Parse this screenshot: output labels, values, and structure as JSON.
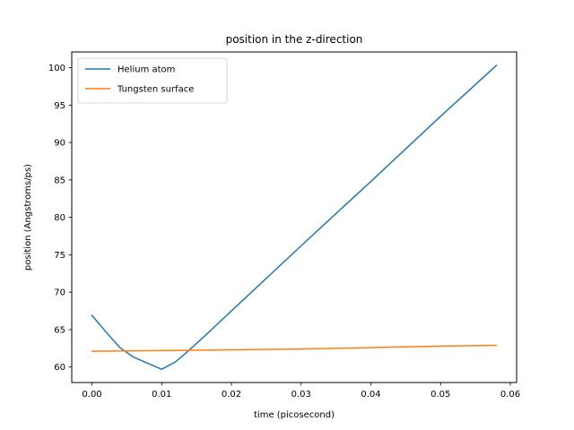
{
  "chart_data": {
    "type": "line",
    "title": "position in the z-direction",
    "xlabel": "time (picosecond)",
    "ylabel": "position (Angstroms/ps)",
    "xlim": [
      -0.0029,
      0.0609
    ],
    "ylim": [
      57.93,
      102.1
    ],
    "xticks": [
      0.0,
      0.01,
      0.02,
      0.03,
      0.04,
      0.05,
      0.06
    ],
    "xtick_labels": [
      "0.00",
      "0.01",
      "0.02",
      "0.03",
      "0.04",
      "0.05",
      "0.06"
    ],
    "yticks": [
      60,
      65,
      70,
      75,
      80,
      85,
      90,
      95,
      100
    ],
    "ytick_labels": [
      "60",
      "65",
      "70",
      "75",
      "80",
      "85",
      "90",
      "95",
      "100"
    ],
    "grid": false,
    "legend": "top-left",
    "series": [
      {
        "name": "Helium atom",
        "color": "#1f77b4",
        "x": [
          0.0,
          0.002,
          0.004,
          0.006,
          0.008,
          0.01,
          0.012,
          0.014,
          0.016,
          0.02,
          0.03,
          0.04,
          0.05,
          0.058
        ],
        "y": [
          66.9,
          64.7,
          62.6,
          61.3,
          60.5,
          59.7,
          60.7,
          62.3,
          64.0,
          67.5,
          76.2,
          84.8,
          93.5,
          100.3
        ]
      },
      {
        "name": "Tungsten surface",
        "color": "#ff7f0e",
        "x": [
          0.0,
          0.01,
          0.02,
          0.03,
          0.04,
          0.05,
          0.058
        ],
        "y": [
          62.1,
          62.2,
          62.3,
          62.4,
          62.6,
          62.8,
          62.9
        ]
      }
    ]
  }
}
